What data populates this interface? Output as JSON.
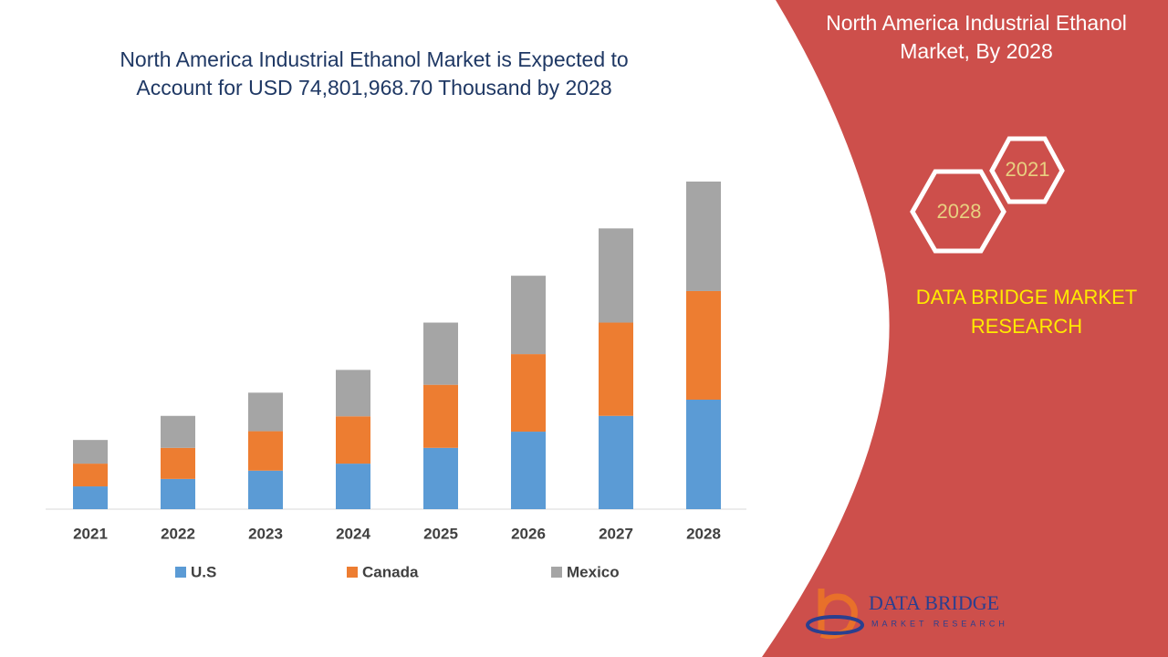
{
  "chart_data": {
    "type": "stacked-bar",
    "title": "North America Industrial Ethanol Market is Expected to Account for USD 74,801,968.70 Thousand by 2028",
    "categories": [
      "2021",
      "2022",
      "2023",
      "2024",
      "2025",
      "2026",
      "2027",
      "2028"
    ],
    "series": [
      {
        "name": "U.S",
        "color": "#5b9bd5",
        "values": [
          5.2,
          6.9,
          8.8,
          10.4,
          14.0,
          17.7,
          21.3,
          25.0
        ]
      },
      {
        "name": "Canada",
        "color": "#ed7d31",
        "values": [
          5.2,
          7.1,
          9.0,
          10.8,
          14.4,
          17.7,
          21.3,
          24.8
        ]
      },
      {
        "name": "Mexico",
        "color": "#a5a5a5",
        "values": [
          5.4,
          7.3,
          8.8,
          10.6,
          14.2,
          17.9,
          21.5,
          25.0
        ]
      }
    ]
  },
  "panel": {
    "title": "North America Industrial Ethanol Market, By 2028",
    "hex_left": "2028",
    "hex_right": "2021",
    "brand": "DATA BRIDGE MARKET RESEARCH",
    "logo": "DATA BRIDGE",
    "logo_sub": "MARKET RESEARCH"
  }
}
